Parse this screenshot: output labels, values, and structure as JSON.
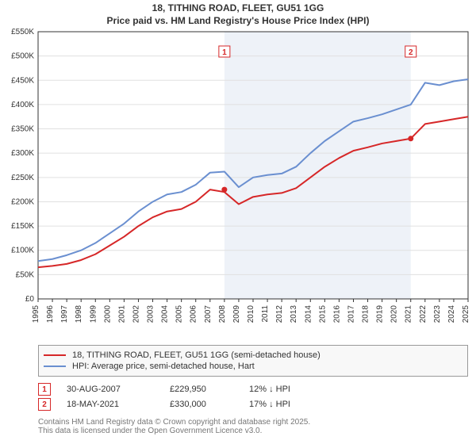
{
  "title_line1": "18, TITHING ROAD, FLEET, GU51 1GG",
  "title_line2": "Price paid vs. HM Land Registry's House Price Index (HPI)",
  "chart": {
    "type": "line",
    "background": "#ffffff",
    "shaded_region": {
      "color": "#eef2f8",
      "x_from": "2008",
      "x_to": "2021"
    },
    "grid_color": "#e0e0e0",
    "axis_color": "#333333",
    "x": {
      "labels": [
        "1995",
        "1996",
        "1997",
        "1998",
        "1999",
        "2000",
        "2001",
        "2002",
        "2003",
        "2004",
        "2005",
        "2006",
        "2007",
        "2008",
        "2009",
        "2010",
        "2011",
        "2012",
        "2013",
        "2014",
        "2015",
        "2016",
        "2017",
        "2018",
        "2019",
        "2020",
        "2021",
        "2022",
        "2023",
        "2024",
        "2025"
      ],
      "fontsize": 10,
      "rotate": -90
    },
    "y": {
      "labels": [
        "£0",
        "£50K",
        "£100K",
        "£150K",
        "£200K",
        "£250K",
        "£300K",
        "£350K",
        "£400K",
        "£450K",
        "£500K",
        "£550K"
      ],
      "min": 0,
      "max": 550,
      "step": 50,
      "fontsize": 10
    },
    "series": [
      {
        "name": "price_paid",
        "label": "18, TITHING ROAD, FLEET, GU51 1GG (semi-detached house)",
        "color": "#d62728",
        "width": 2,
        "values": [
          65,
          68,
          72,
          80,
          92,
          110,
          128,
          150,
          168,
          180,
          185,
          200,
          225,
          220,
          195,
          210,
          215,
          218,
          228,
          250,
          272,
          290,
          305,
          312,
          320,
          325,
          330,
          360,
          365,
          370,
          375
        ]
      },
      {
        "name": "hpi",
        "label": "HPI: Average price, semi-detached house, Hart",
        "color": "#6a8fd0",
        "width": 2,
        "values": [
          78,
          82,
          90,
          100,
          115,
          135,
          155,
          180,
          200,
          215,
          220,
          235,
          260,
          262,
          230,
          250,
          255,
          258,
          272,
          300,
          325,
          345,
          365,
          372,
          380,
          390,
          400,
          445,
          440,
          448,
          452
        ]
      }
    ],
    "markers": [
      {
        "num": "1",
        "x": "2008",
        "y_top": true,
        "y_dot": 225,
        "color": "#d62728"
      },
      {
        "num": "2",
        "x": "2021",
        "y_top": true,
        "y_dot": 330,
        "color": "#d62728"
      }
    ]
  },
  "legend": {
    "series1": "18, TITHING ROAD, FLEET, GU51 1GG (semi-detached house)",
    "series2": "HPI: Average price, semi-detached house, Hart"
  },
  "events": [
    {
      "num": "1",
      "date": "30-AUG-2007",
      "price": "£229,950",
      "delta": "12% ↓ HPI"
    },
    {
      "num": "2",
      "date": "18-MAY-2021",
      "price": "£330,000",
      "delta": "17% ↓ HPI"
    }
  ],
  "footer_line1": "Contains HM Land Registry data © Crown copyright and database right 2025.",
  "footer_line2": "This data is licensed under the Open Government Licence v3.0."
}
